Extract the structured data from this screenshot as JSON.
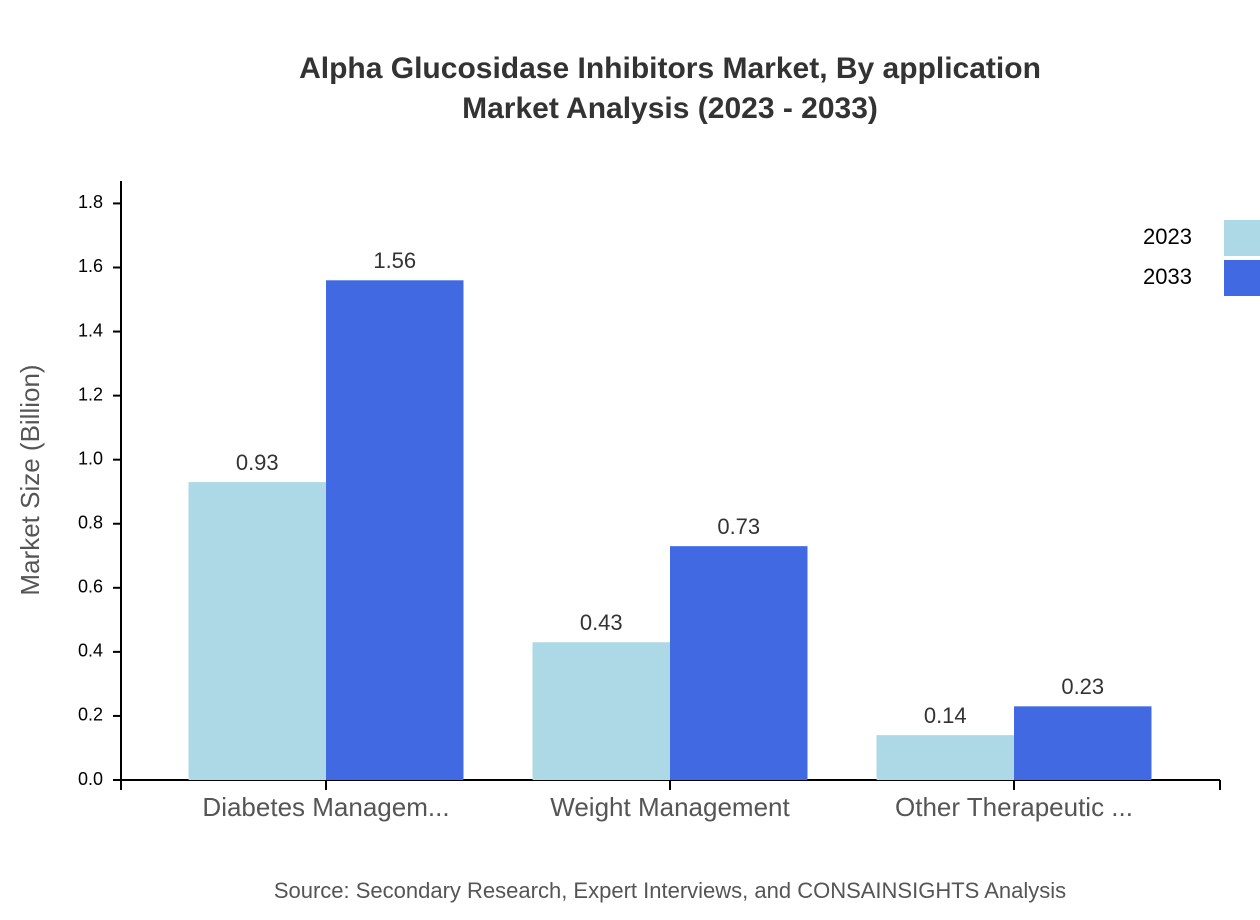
{
  "chart_data": {
    "type": "bar",
    "title": "Alpha Glucosidase Inhibitors Market, By application",
    "subtitle": "Market Analysis (2023 - 2033)",
    "y_label": "Market Size (Billion)",
    "source": "Source: Secondary Research, Expert Interviews, and CONSAINSIGHTS Analysis",
    "categories": [
      "Diabetes Managem...",
      "Weight Management",
      "Other Therapeutic ..."
    ],
    "series": [
      {
        "name": "2023",
        "color": "#add8e6",
        "values": [
          0.93,
          0.43,
          0.14
        ]
      },
      {
        "name": "2033",
        "color": "#4169e1",
        "values": [
          1.56,
          0.73,
          0.23
        ]
      }
    ],
    "ylim": [
      0,
      1.87
    ],
    "yticks": [
      {
        "value": 0,
        "label": "0.0"
      },
      0.2,
      0.4,
      0.6,
      0.8,
      {
        "value": 1,
        "label": "1.0"
      },
      1.2,
      1.4,
      1.6,
      1.8
    ],
    "legend": "top-right",
    "grid": false
  }
}
